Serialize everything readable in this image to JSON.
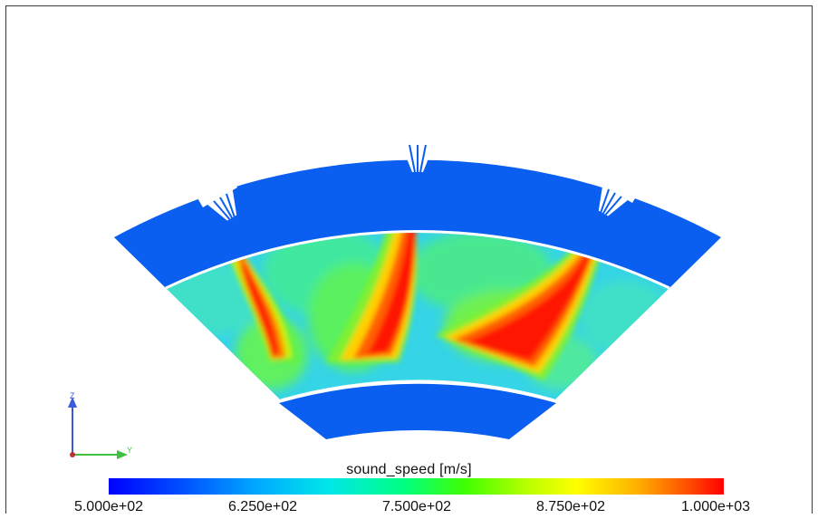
{
  "colorbar": {
    "title": "sound_speed [m/s]",
    "ticks": [
      "5.000e+02",
      "6.250e+02",
      "7.500e+02",
      "8.750e+02",
      "1.000e+03"
    ],
    "min": 500,
    "max": 1000,
    "colormap": [
      "#0000ff",
      "#00a8ff",
      "#00e8e8",
      "#00ff80",
      "#b8ff00",
      "#ffff00",
      "#ff5000",
      "#ff0000"
    ]
  },
  "axes_triad": {
    "up_label": "Z",
    "right_label": "Y"
  },
  "colors": {
    "solid_region": "#0a5ff0",
    "fluid_base": "#2fd0e0"
  }
}
